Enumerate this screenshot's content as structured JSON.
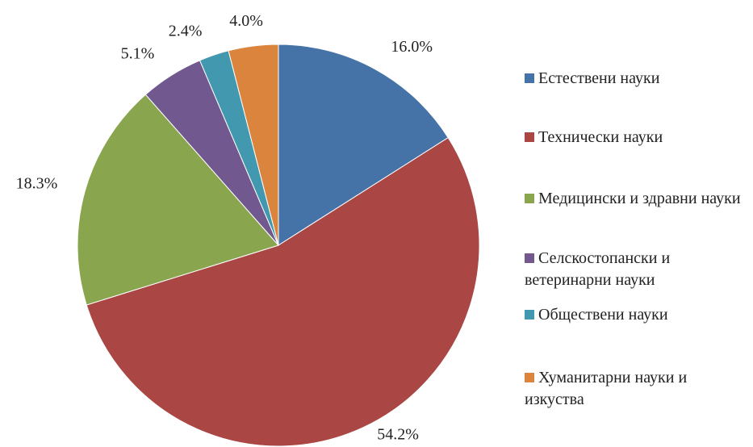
{
  "chart_data": {
    "type": "pie",
    "categories": [
      "Естествени науки",
      "Технически науки",
      "Медицински и здравни науки",
      "Селскостопански и ветеринарни науки",
      "Обществени науки",
      "Хуманитарни науки и изкуства"
    ],
    "values": [
      16.0,
      54.2,
      18.3,
      5.1,
      2.4,
      4.0
    ],
    "value_labels": [
      "16.0%",
      "54.2%",
      "18.3%",
      "5.1%",
      "2.4%",
      "4.0%"
    ],
    "colors": [
      "#4572A7",
      "#AA4643",
      "#89A54E",
      "#71588F",
      "#4198AF",
      "#DB843D"
    ],
    "legend": "right"
  }
}
